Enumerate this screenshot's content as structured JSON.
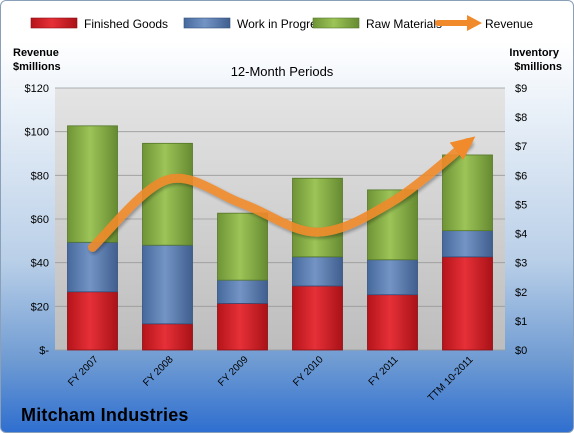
{
  "company": "Mitcham Industries",
  "chart_data": {
    "type": "bar",
    "stacked": true,
    "subtitle": "12-Month Periods",
    "left_axis_title": [
      "Revenue",
      "$millions"
    ],
    "right_axis_title": [
      "Inventory",
      "$millions"
    ],
    "categories": [
      "FY 2007",
      "FY 2008",
      "FY 2009",
      "FY 2010",
      "FY 2011",
      "TTM 10-2011"
    ],
    "series": [
      {
        "name": "Finished Goods",
        "axis": "right",
        "color": "#e0232b",
        "values": [
          2.0,
          0.9,
          1.6,
          2.2,
          1.9,
          3.2
        ]
      },
      {
        "name": "Work in Progress",
        "axis": "right",
        "color": "#5a7fb5",
        "values": [
          1.7,
          2.7,
          0.8,
          1.0,
          1.2,
          0.9
        ]
      },
      {
        "name": "Raw Materials",
        "axis": "right",
        "color": "#8cb54a",
        "values": [
          4.0,
          3.5,
          2.3,
          2.7,
          2.4,
          2.6
        ]
      }
    ],
    "line": {
      "name": "Revenue",
      "axis": "left",
      "color": "#f08a2a",
      "values": [
        47,
        78,
        67,
        54,
        68,
        95
      ]
    },
    "left_axis": {
      "min": 0,
      "max": 120,
      "ticks": [
        "$-",
        "$20",
        "$40",
        "$60",
        "$80",
        "$100",
        "$120"
      ]
    },
    "right_axis": {
      "min": 0,
      "max": 9,
      "ticks": [
        "$0",
        "$1",
        "$2",
        "$3",
        "$4",
        "$5",
        "$6",
        "$7",
        "$8",
        "$9"
      ]
    },
    "grid": true,
    "legend_position": "top"
  }
}
